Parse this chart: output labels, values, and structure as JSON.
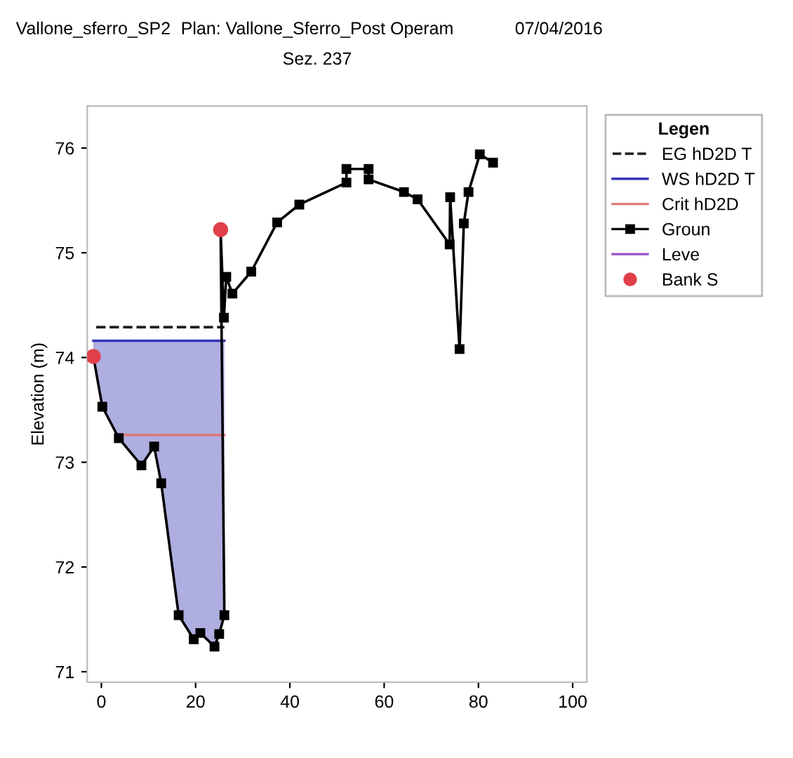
{
  "chart_data": {
    "type": "line",
    "title": "Vallone_sferro_SP2",
    "subtitle": "Plan: Vallone_Sferro_Post Operam",
    "annotations": [
      "07/04/2016",
      "Sez. 237"
    ],
    "ylabel": "Elevation (m)",
    "legend_title": "Legen",
    "legend": "top right",
    "xlim": [
      -3,
      103
    ],
    "xticks": [
      0,
      20,
      40,
      60,
      80,
      100
    ],
    "ylim": [
      70.9,
      76.4
    ],
    "yticks": [
      71,
      72,
      73,
      74,
      75,
      76
    ],
    "grid": false,
    "series": [
      {
        "name": "EG hD2D T",
        "color": "#202020",
        "line_style": "dashed",
        "marker": "none",
        "x": [
          -1.1,
          26.1
        ],
        "values": [
          74.29,
          74.29
        ]
      },
      {
        "name": "WS hD2D T",
        "color": "#3535b5",
        "line_style": "solid",
        "marker": "none",
        "x": [
          -1.7,
          0.2,
          3.7,
          8.5,
          11.2,
          12.7,
          16.4,
          19.6,
          21.0,
          24.0,
          25.0,
          26.1
        ],
        "values": [
          74.16,
          74.16,
          74.16,
          74.16,
          74.16,
          74.16,
          74.16,
          74.16,
          74.16,
          74.16,
          74.16,
          74.16
        ],
        "lower": [
          74.01,
          73.53,
          73.23,
          72.97,
          73.15,
          72.8,
          71.54,
          71.31,
          71.37,
          71.24,
          71.36,
          71.54
        ],
        "upper": [
          74.16,
          74.16,
          74.16,
          74.16,
          74.16,
          74.16,
          74.16,
          74.16,
          74.16,
          74.16,
          74.16,
          74.16
        ]
      },
      {
        "name": "Crit hD2D",
        "color": "#e07878",
        "line_style": "solid",
        "marker": "none",
        "x": [
          3.9,
          26.1
        ],
        "values": [
          73.26,
          73.26
        ]
      },
      {
        "name": "Groun",
        "color": "#000000",
        "line_style": "solid",
        "marker": "square",
        "x": [
          -1.7,
          0.2,
          3.7,
          8.5,
          11.2,
          12.7,
          16.4,
          19.6,
          21.0,
          24.0,
          25.0,
          26.1,
          25.3,
          26.0,
          26.5,
          27.8,
          31.8,
          37.3,
          42.0,
          52.0,
          52.0,
          56.7,
          56.7,
          64.2,
          67.1,
          73.9,
          74.0,
          76.0,
          76.9,
          77.9,
          80.3,
          83.1
        ],
        "values": [
          74.01,
          73.53,
          73.23,
          72.97,
          73.15,
          72.8,
          71.54,
          71.31,
          71.37,
          71.24,
          71.36,
          71.54,
          75.22,
          74.38,
          74.77,
          74.61,
          74.82,
          75.29,
          75.46,
          75.67,
          75.8,
          75.8,
          75.7,
          75.58,
          75.51,
          75.08,
          75.53,
          74.08,
          75.28,
          75.58,
          75.94,
          75.86
        ]
      },
      {
        "name": "Leve",
        "color": "#9a4fc8",
        "line_style": "solid",
        "marker": "none"
      },
      {
        "name": "Bank S",
        "type": "scatter",
        "color": "#e0404a",
        "marker": "circle",
        "x": [
          -1.7,
          25.3
        ],
        "values": [
          74.01,
          75.22
        ]
      }
    ]
  }
}
